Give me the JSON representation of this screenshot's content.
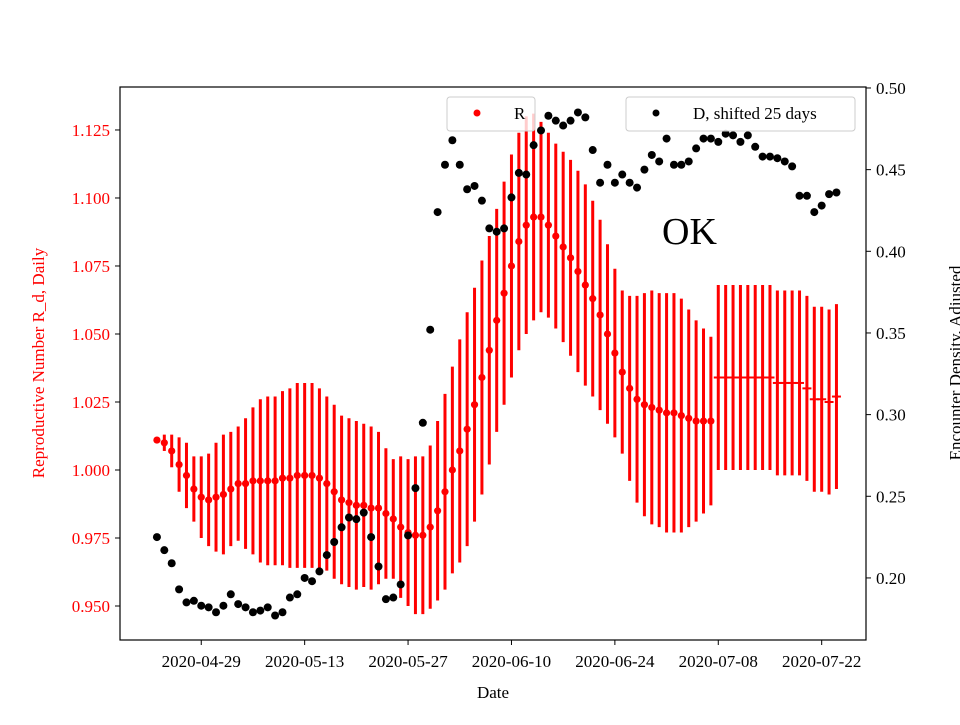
{
  "chart_data": {
    "type": "scatter",
    "xlabel": "Date",
    "ylabel_left": "Reproductive Number R_d, Daily",
    "ylabel_right": "Encounter Density, Adjusted",
    "annotation": "OK",
    "x_start": "2020-04-23",
    "xlim": [
      "2020-04-18",
      "2020-07-28"
    ],
    "ylim_left": [
      0.9375,
      1.1408
    ],
    "ylim_right": [
      0.162,
      0.5006
    ],
    "x_ticks": [
      "2020-04-29",
      "2020-05-13",
      "2020-05-27",
      "2020-06-10",
      "2020-06-24",
      "2020-07-08",
      "2020-07-22"
    ],
    "y_ticks_left": [
      "0.950",
      "0.975",
      "1.000",
      "1.025",
      "1.050",
      "1.075",
      "1.100",
      "1.125"
    ],
    "y_ticks_right": [
      "0.20",
      "0.25",
      "0.30",
      "0.35",
      "0.40",
      "0.45",
      "0.50"
    ],
    "grid": false,
    "colors": {
      "R": "#ff0000",
      "D": "#000000",
      "left_axis": "#ff0000",
      "right_axis": "#000000"
    },
    "series": [
      {
        "name": "R",
        "axis": "left",
        "marker_circle_until": "2020-07-07",
        "values": [
          1.011,
          1.01,
          1.007,
          1.002,
          0.998,
          0.993,
          0.99,
          0.989,
          0.99,
          0.991,
          0.993,
          0.995,
          0.995,
          0.996,
          0.996,
          0.996,
          0.996,
          0.997,
          0.997,
          0.998,
          0.998,
          0.998,
          0.997,
          0.995,
          0.992,
          0.989,
          0.988,
          0.987,
          0.987,
          0.986,
          0.986,
          0.984,
          0.982,
          0.979,
          0.977,
          0.976,
          0.976,
          0.979,
          0.985,
          0.992,
          1.0,
          1.007,
          1.015,
          1.024,
          1.034,
          1.044,
          1.055,
          1.065,
          1.075,
          1.084,
          1.09,
          1.093,
          1.093,
          1.09,
          1.086,
          1.082,
          1.078,
          1.073,
          1.068,
          1.063,
          1.057,
          1.05,
          1.043,
          1.036,
          1.03,
          1.026,
          1.024,
          1.023,
          1.022,
          1.021,
          1.021,
          1.02,
          1.019,
          1.018,
          1.018,
          1.018,
          1.034,
          1.034,
          1.034,
          1.034,
          1.034,
          1.034,
          1.034,
          1.034,
          1.032,
          1.032,
          1.032,
          1.032,
          1.03,
          1.026,
          1.026,
          1.025,
          1.027
        ],
        "error": [
          0.001,
          0.003,
          0.006,
          0.01,
          0.012,
          0.012,
          0.015,
          0.017,
          0.02,
          0.022,
          0.021,
          0.021,
          0.024,
          0.027,
          0.03,
          0.031,
          0.031,
          0.032,
          0.033,
          0.034,
          0.034,
          0.034,
          0.033,
          0.032,
          0.032,
          0.031,
          0.031,
          0.031,
          0.03,
          0.03,
          0.028,
          0.024,
          0.022,
          0.026,
          0.027,
          0.029,
          0.029,
          0.03,
          0.033,
          0.036,
          0.038,
          0.041,
          0.043,
          0.043,
          0.043,
          0.042,
          0.041,
          0.041,
          0.041,
          0.04,
          0.04,
          0.038,
          0.035,
          0.034,
          0.034,
          0.035,
          0.036,
          0.037,
          0.037,
          0.036,
          0.035,
          0.033,
          0.031,
          0.03,
          0.034,
          0.038,
          0.041,
          0.043,
          0.043,
          0.044,
          0.044,
          0.043,
          0.04,
          0.037,
          0.034,
          0.031,
          0.034,
          0.034,
          0.034,
          0.034,
          0.034,
          0.034,
          0.034,
          0.034,
          0.034,
          0.034,
          0.034,
          0.034,
          0.034,
          0.034,
          0.034,
          0.034,
          0.034
        ]
      },
      {
        "name": "D, shifted 25 days",
        "axis": "right",
        "values": [
          0.225,
          0.217,
          0.209,
          0.193,
          0.185,
          0.186,
          0.183,
          0.182,
          0.179,
          0.183,
          0.19,
          0.184,
          0.182,
          0.179,
          0.18,
          0.182,
          0.177,
          0.179,
          0.188,
          0.19,
          0.2,
          0.198,
          0.204,
          0.214,
          0.222,
          0.231,
          0.237,
          0.236,
          0.24,
          0.225,
          0.207,
          0.187,
          0.188,
          0.196,
          0.226,
          0.255,
          0.295,
          0.352,
          0.424,
          0.453,
          0.468,
          0.453,
          0.438,
          0.44,
          0.431,
          0.414,
          0.412,
          0.414,
          0.433,
          0.448,
          0.447,
          0.465,
          0.474,
          0.483,
          0.48,
          0.477,
          0.48,
          0.485,
          0.482,
          0.462,
          0.442,
          0.453,
          0.442,
          0.447,
          0.442,
          0.439,
          0.45,
          0.459,
          0.455,
          0.469,
          0.453,
          0.453,
          0.455,
          0.463,
          0.469,
          0.469,
          0.467,
          0.472,
          0.471,
          0.467,
          0.471,
          0.464,
          0.458,
          0.458,
          0.457,
          0.455,
          0.452,
          0.434,
          0.434,
          0.424,
          0.428,
          0.435,
          0.436
        ]
      }
    ]
  }
}
